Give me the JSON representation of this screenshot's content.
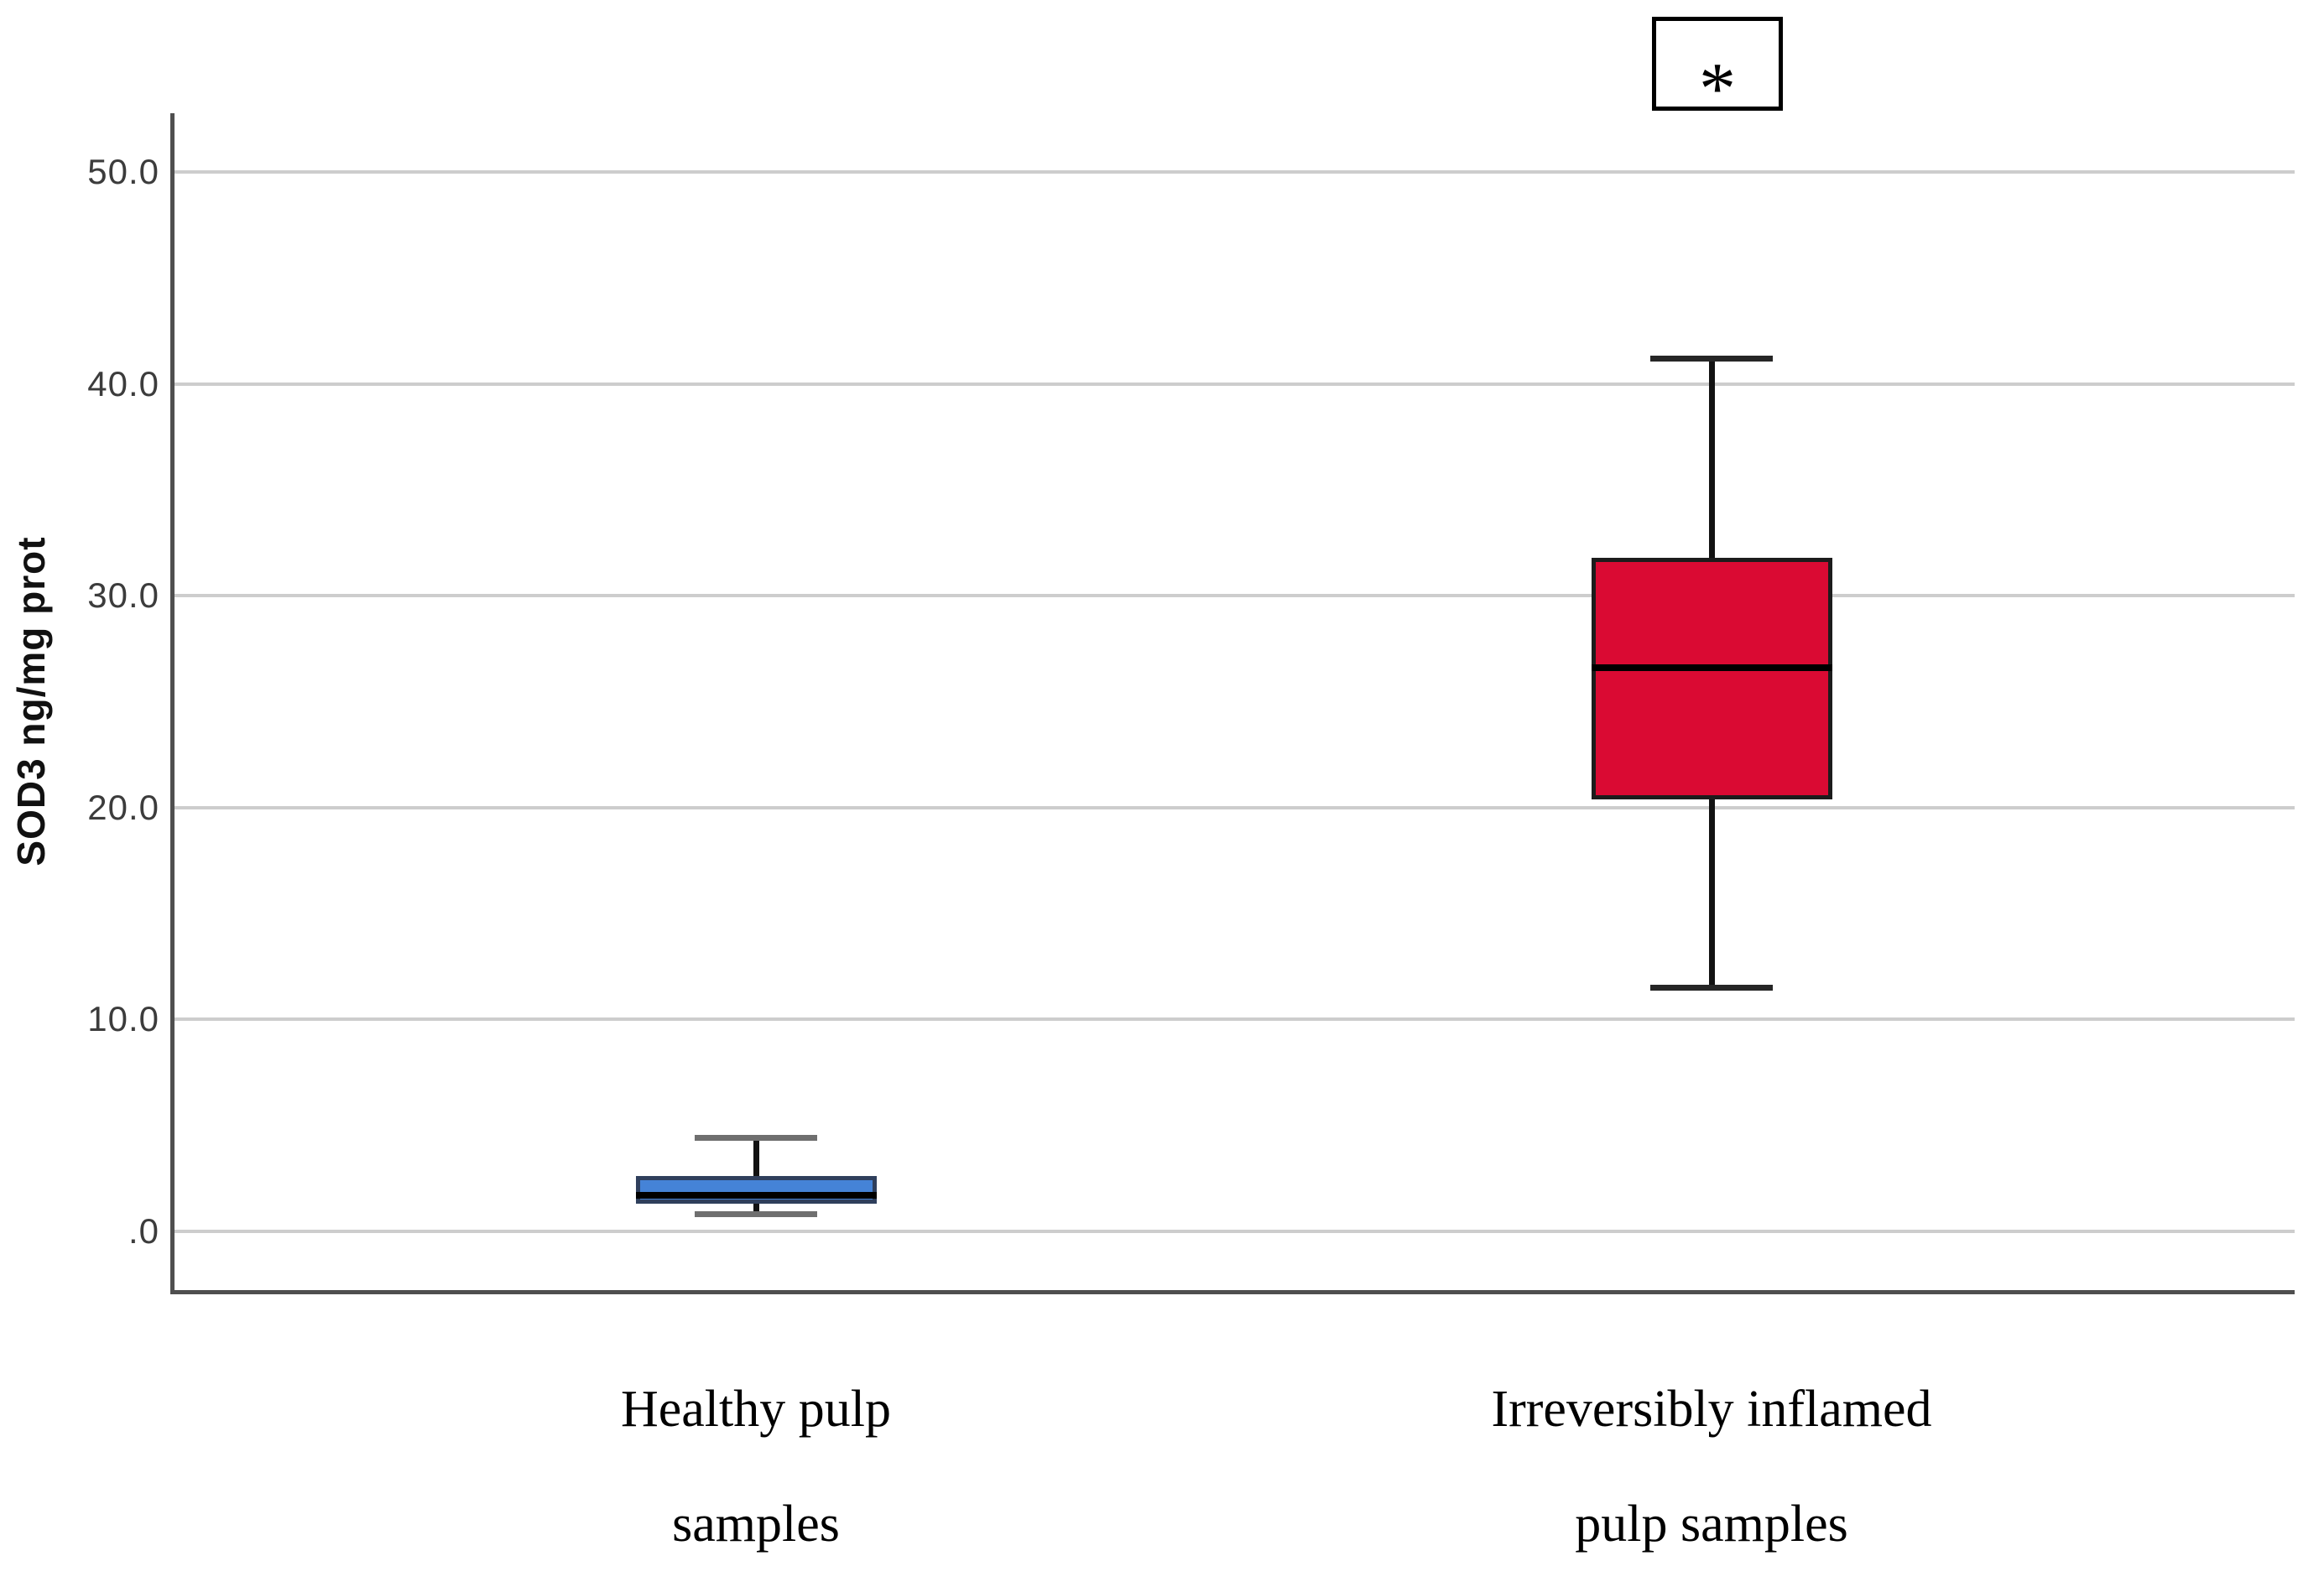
{
  "figure": {
    "background": "#ffffff"
  },
  "chart_data": {
    "type": "box",
    "title": "",
    "ylabel": "SOD3 ng/mg prot",
    "xlabel": "",
    "ylim": [
      0,
      50
    ],
    "grid": "horizontal-gridlines-on",
    "legend": "none",
    "yticks": [
      {
        "value": 0,
        "label": ".0"
      },
      {
        "value": 10,
        "label": "10.0"
      },
      {
        "value": 20,
        "label": "20.0"
      },
      {
        "value": 30,
        "label": "30.0"
      },
      {
        "value": 40,
        "label": "40.0"
      },
      {
        "value": 50,
        "label": "50.0"
      }
    ],
    "categories": [
      "Healthy pulp samples",
      "Irreversibly inflamed pulp samples"
    ],
    "series": [
      {
        "name": "Healthy pulp samples",
        "label_lines": [
          "Healthy pulp",
          "samples"
        ],
        "whisker_low": 0.8,
        "q1": 1.3,
        "median": 1.7,
        "q3": 2.6,
        "whisker_high": 4.4,
        "fill_color": "#4583d7",
        "edge_color": "#2f3f5c",
        "median_color": "#000000",
        "cap_color": "#6f6f6f"
      },
      {
        "name": "Irreversibly inflamed pulp samples",
        "label_lines": [
          "Irreversibly inflamed",
          "pulp samples"
        ],
        "whisker_low": 11.5,
        "q1": 20.4,
        "median": 26.6,
        "q3": 31.8,
        "whisker_high": 41.2,
        "fill_color": "#da0a33",
        "edge_color": "#1c1c1c",
        "median_color": "#000000",
        "cap_color": "#262626"
      }
    ],
    "annotation": {
      "symbol": "*",
      "meaning": "significance-marker",
      "attached_to": "Irreversibly inflamed pulp samples"
    }
  },
  "colors": {
    "gridline": "#cdcdcd",
    "axis_frame": "#4f4f4f",
    "tick_text": "#3c3c3c"
  }
}
